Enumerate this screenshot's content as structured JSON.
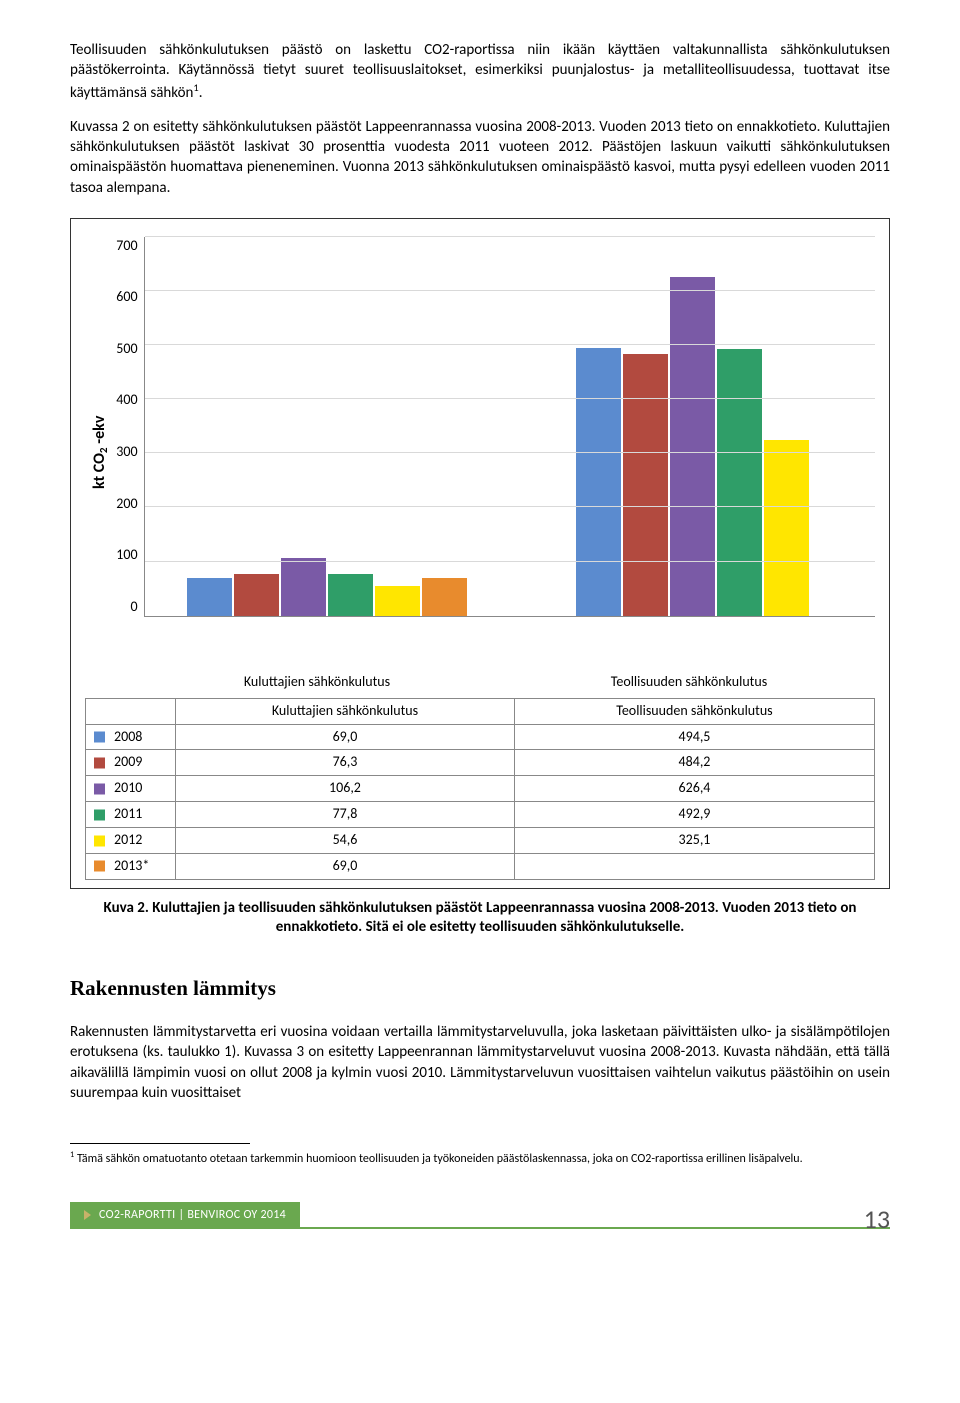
{
  "paragraphs": {
    "p1": "Teollisuuden sähkönkulutuksen päästö on laskettu CO2-raportissa niin ikään käyttäen valtakunnallista sähkönkulutuksen päästökerrointa. Käytännössä tietyt suuret teollisuuslaitokset, esimerkiksi puunjalostus- ja metalliteollisuudessa, tuottavat itse käyttämänsä sähkön",
    "p1_sup": "1",
    "p1_tail": ".",
    "p2": "Kuvassa 2 on esitetty sähkönkulutuksen päästöt Lappeenrannassa vuosina 2008-2013. Vuoden 2013 tieto on ennakkotieto. Kuluttajien sähkönkulutuksen päästöt laskivat 30 prosenttia vuodesta 2011 vuoteen 2012. Päästöjen laskuun vaikutti   sähkönkulutuksen ominaispäästön huomattava pieneneminen. Vuonna 2013 sähkönkulutuksen ominaispäästö kasvoi, mutta pysyi edelleen vuoden 2011 tasoa alempana.",
    "p3": "Rakennusten lämmitystarvetta eri vuosina voidaan vertailla lämmitystarveluvulla, joka lasketaan päivittäisten ulko- ja sisälämpötilojen erotuksena (ks. taulukko 1). Kuvassa 3 on esitetty Lappeenrannan lämmitystarveluvut vuosina 2008-2013. Kuvasta nähdään, että tällä aikavälillä lämpimin vuosi on ollut 2008 ja kylmin vuosi 2010. Lämmitystarveluvun vuosittaisen vaihtelun vaikutus päästöihin on usein suurempaa kuin vuosittaiset"
  },
  "chart": {
    "type": "bar",
    "ylabel": "kt CO₂ -ekv",
    "ymax": 700,
    "ytick_step": 100,
    "yticks": [
      "700",
      "600",
      "500",
      "400",
      "300",
      "200",
      "100",
      "0"
    ],
    "grid_color": "#d9d9d9",
    "categories": [
      "Kuluttajien sähkönkulutus",
      "Teollisuuden sähkönkulutus"
    ],
    "series": [
      {
        "label": "2008",
        "color": "#5b8bcf",
        "values": [
          69.0,
          494.5
        ],
        "display": [
          "69,0",
          "494,5"
        ]
      },
      {
        "label": "2009",
        "color": "#b24a3f",
        "values": [
          76.3,
          484.2
        ],
        "display": [
          "76,3",
          "484,2"
        ]
      },
      {
        "label": "2010",
        "color": "#7a5aa6",
        "values": [
          106.2,
          626.4
        ],
        "display": [
          "106,2",
          "626,4"
        ]
      },
      {
        "label": "2011",
        "color": "#2f9e68",
        "values": [
          77.8,
          492.9
        ],
        "display": [
          "77,8",
          "492,9"
        ]
      },
      {
        "label": "2012",
        "color": "#ffe600",
        "values": [
          54.6,
          325.1
        ],
        "display": [
          "54,6",
          "325,1"
        ]
      },
      {
        "label": "2013*",
        "color": "#e88b2d",
        "values": [
          69.0,
          null
        ],
        "display": [
          "69,0",
          ""
        ]
      }
    ]
  },
  "caption": "Kuva 2. Kuluttajien ja teollisuuden sähkönkulutuksen päästöt Lappeenrannassa vuosina 2008-2013. Vuoden 2013 tieto on ennakkotieto. Sitä ei ole esitetty teollisuuden sähkönkulutukselle.",
  "section_heading": "Rakennusten lämmitys",
  "footnote": {
    "marker": "1",
    "text": " Tämä sähkön omatuotanto otetaan tarkemmin huomioon teollisuuden ja työkoneiden päästölaskennassa, joka on CO2-raportissa erillinen lisäpalvelu."
  },
  "footer": {
    "label": "CO2-RAPORTTI | BENVIROC OY 2014",
    "page": "13"
  }
}
